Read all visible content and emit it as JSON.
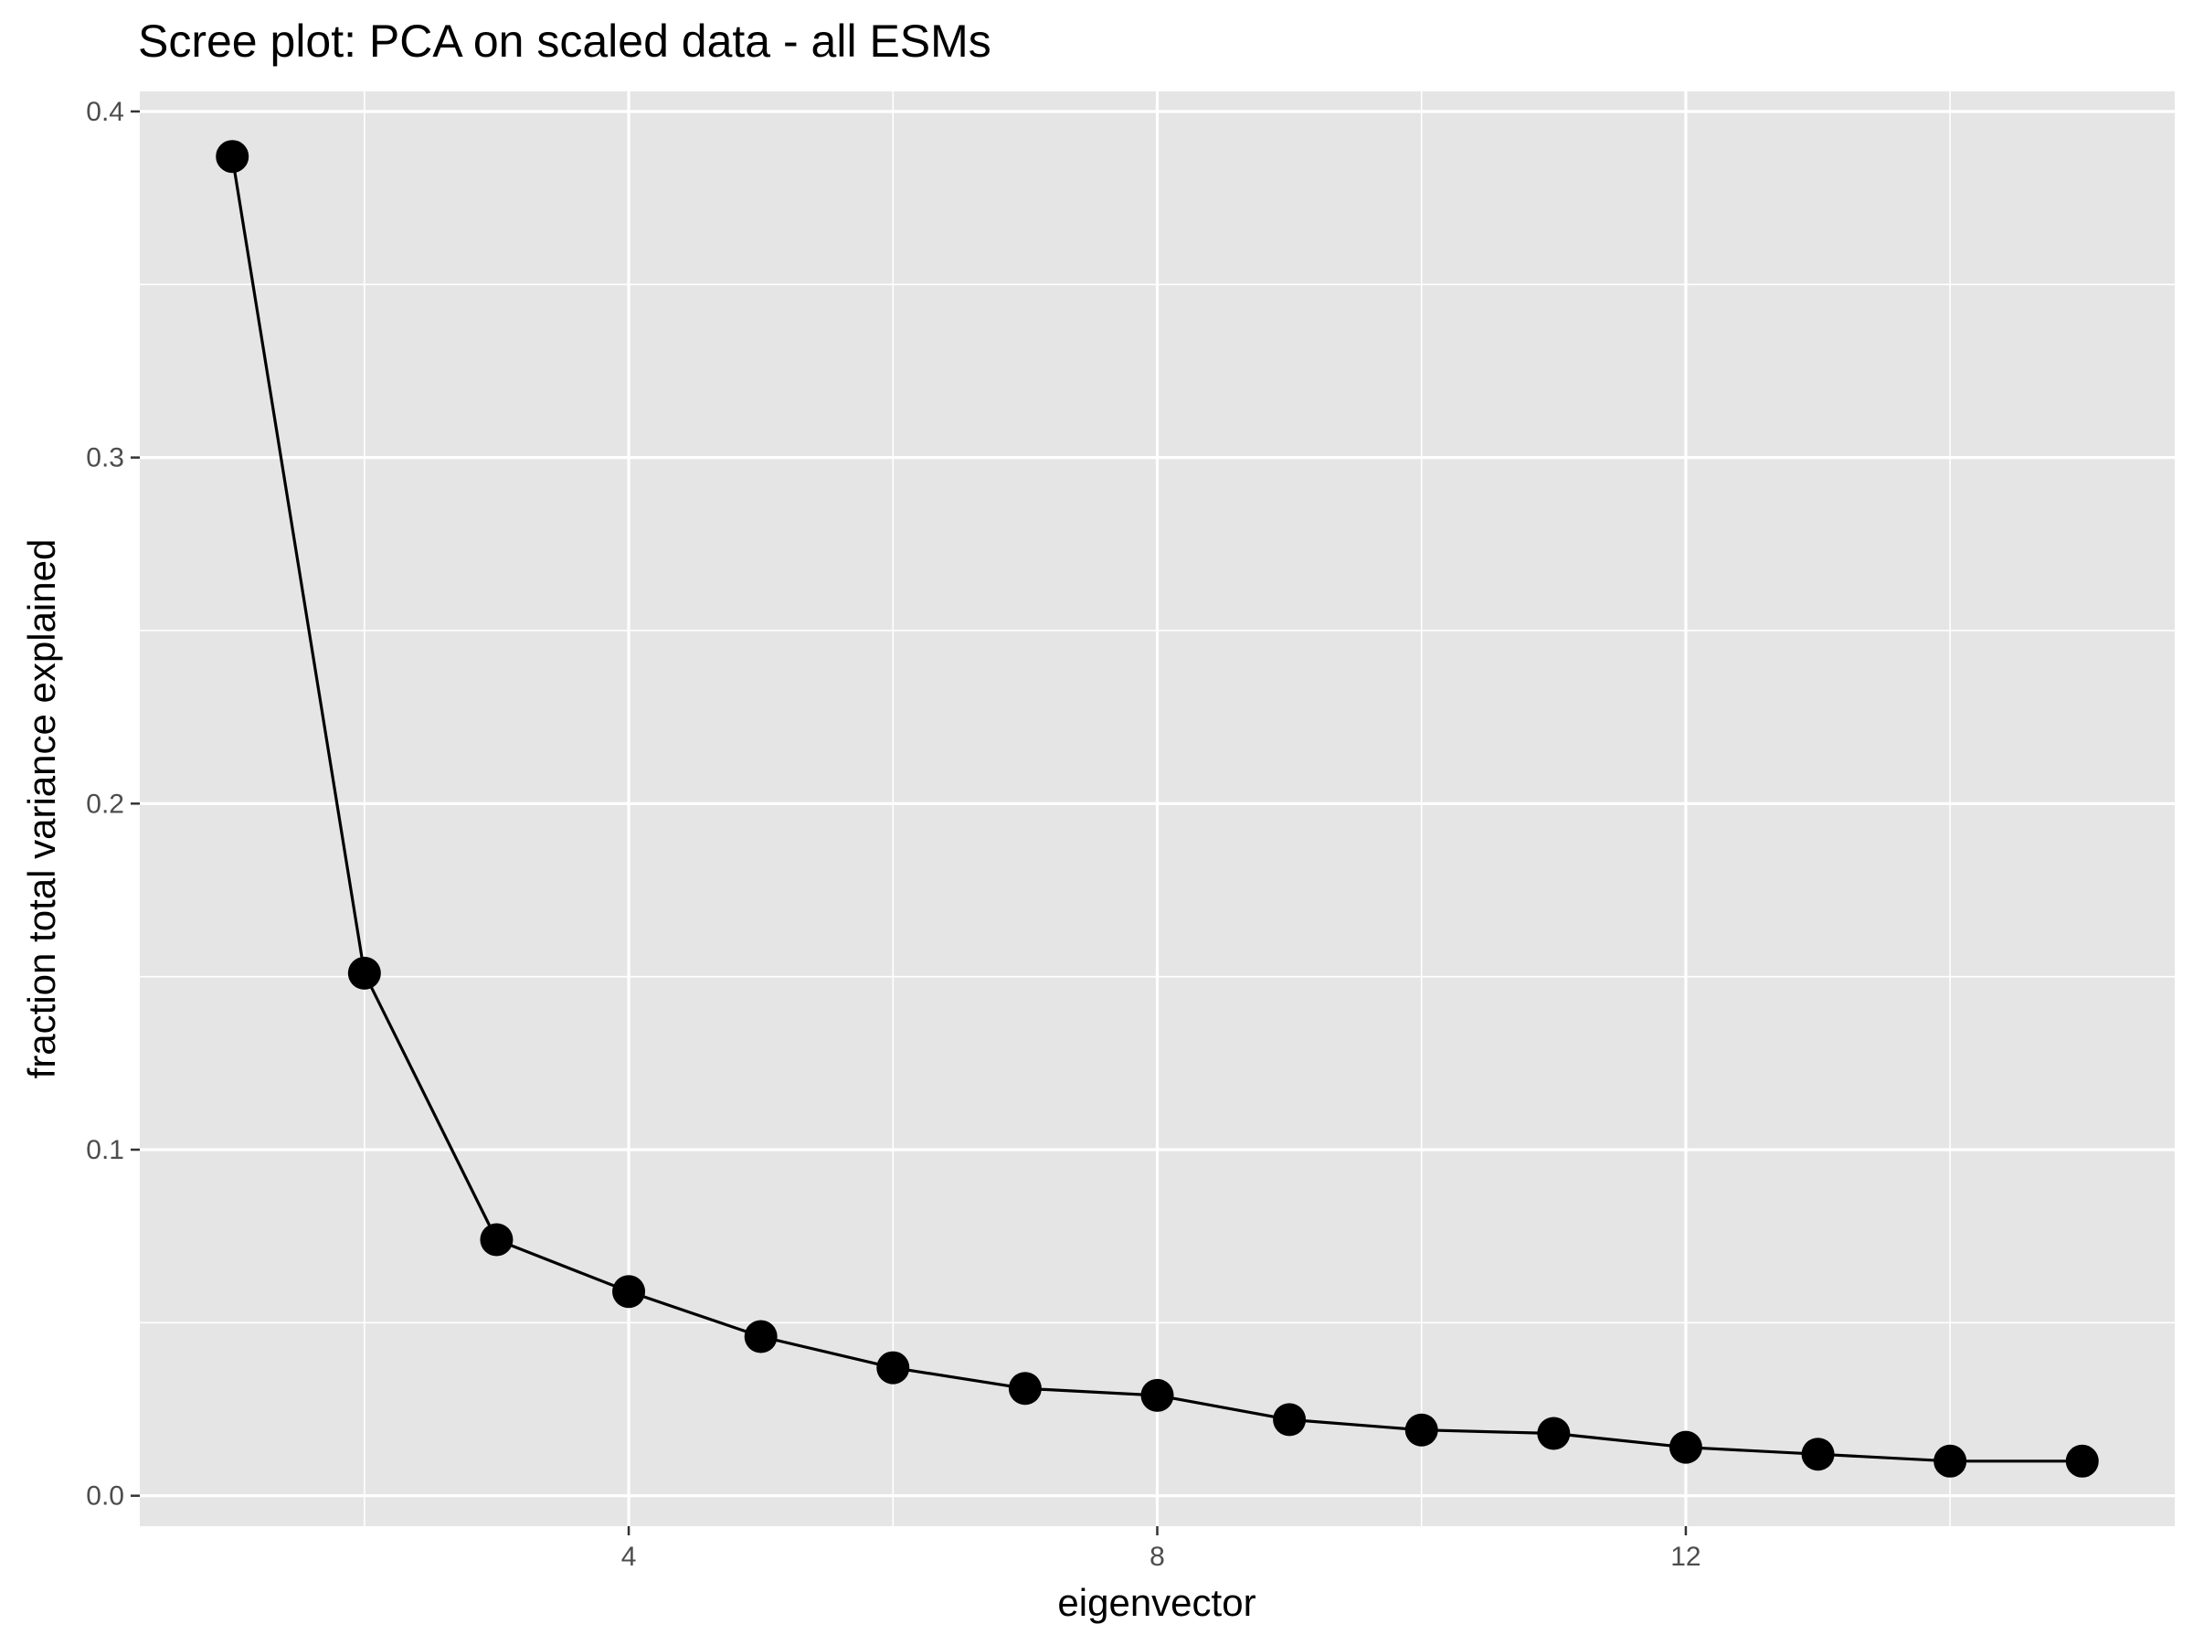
{
  "chart_data": {
    "type": "line",
    "title": "Scree plot: PCA on scaled data - all ESMs",
    "xlabel": "eigenvector",
    "ylabel": "fraction total variance explained",
    "xlim": [
      0.3,
      15.7
    ],
    "ylim": [
      -0.0088,
      0.4058
    ],
    "xticks": [
      4,
      8,
      12
    ],
    "xtick_labels": [
      "4",
      "8",
      "12"
    ],
    "yticks": [
      0.0,
      0.1,
      0.2,
      0.3,
      0.4
    ],
    "ytick_labels": [
      "0.0",
      "0.1",
      "0.2",
      "0.3",
      "0.4"
    ],
    "x_minor_gridlines": [
      2,
      6,
      10,
      14
    ],
    "y_minor_gridlines": [
      0.05,
      0.15,
      0.25,
      0.35
    ],
    "grid": true,
    "legend": "none",
    "series": [
      {
        "x": [
          1,
          2,
          3,
          4,
          5,
          6,
          7,
          8,
          9,
          10,
          11,
          12,
          13,
          14,
          15
        ],
        "values": [
          0.387,
          0.151,
          0.074,
          0.059,
          0.046,
          0.037,
          0.031,
          0.029,
          0.022,
          0.019,
          0.018,
          0.014,
          0.012,
          0.01,
          0.01
        ],
        "color": "#000000"
      }
    ],
    "colors": {
      "panel_background": "#e5e5e5",
      "gridline": "#ffffff",
      "line": "#000000",
      "point": "#000000",
      "tick_text": "#4d4d4d",
      "tick_mark": "#333333"
    }
  }
}
